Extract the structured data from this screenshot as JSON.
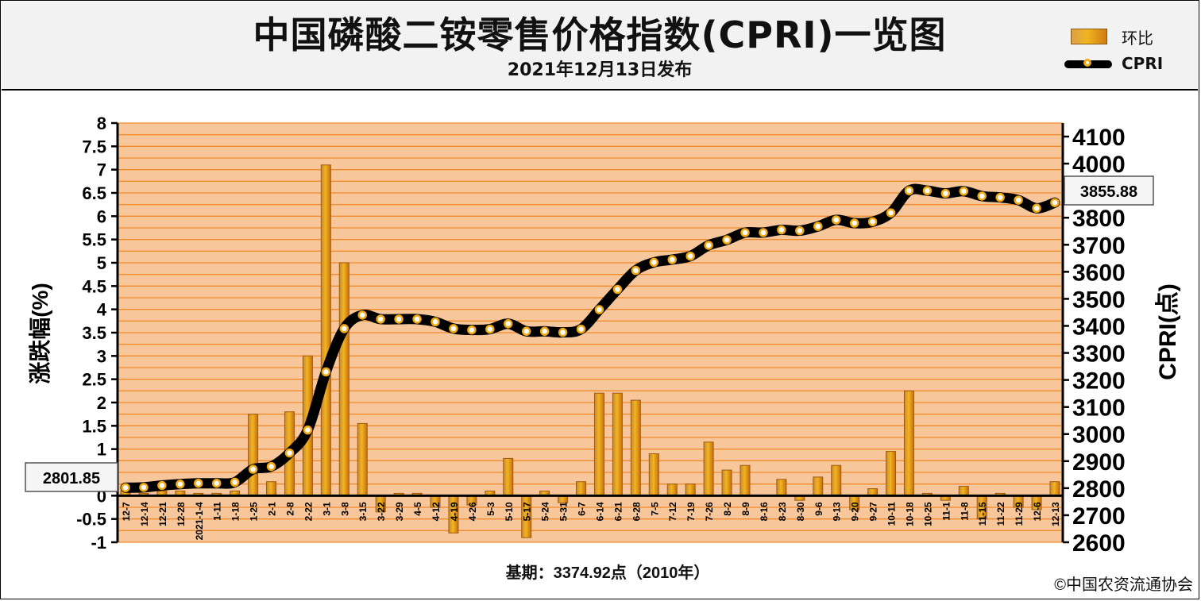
{
  "header": {
    "title": "中国磷酸二铵零售价格指数(CPRI)一览图",
    "subtitle": "2021年12月13日发布"
  },
  "legend": {
    "bar_label": "环比",
    "line_label": "CPRI"
  },
  "footer": {
    "base_period": "基期：3374.92点（2010年）",
    "copyright": "©中国农资流通协会"
  },
  "callouts": {
    "start_value": "2801.85",
    "end_value": "3855.88"
  },
  "colors": {
    "band_fill": "#f7c79b",
    "band_line": "#f08a2a",
    "bar_fill": "#f2b41f",
    "bar_edge": "#a05a10",
    "line": "#000000",
    "dot_fill": "#ffffff",
    "dot_ring": "#f0a810"
  },
  "chart_data": {
    "type": "bar+line",
    "title": "中国磷酸二铵零售价格指数(CPRI)一览图",
    "ylabel_left": "涨跌幅(%)",
    "ylabel_right": "CPRI(点)",
    "ylim_left": [
      -1,
      8
    ],
    "ylim_right": [
      2600,
      4150
    ],
    "left_ticks": [
      "8",
      "7.5",
      "7",
      "6.5",
      "6",
      "5.5",
      "5",
      "4.5",
      "4",
      "3.5",
      "3",
      "2.5",
      "2",
      "1.5",
      "1",
      "0.5",
      "0",
      "-0.5",
      "-1"
    ],
    "right_ticks": [
      "4100",
      "4000",
      "3900",
      "3800",
      "3700",
      "3600",
      "3500",
      "3400",
      "3300",
      "3200",
      "3100",
      "3000",
      "2900",
      "2800",
      "2700",
      "2600"
    ],
    "categories": [
      "12-7",
      "12-14",
      "12-21",
      "12-28",
      "2021-1-4",
      "1-11",
      "1-18",
      "1-25",
      "2-1",
      "2-8",
      "2-22",
      "3-1",
      "3-8",
      "3-15",
      "3-22",
      "3-29",
      "4-5",
      "4-12",
      "4-19",
      "4-26",
      "5-3",
      "5-10",
      "5-17",
      "5-24",
      "5-31",
      "6-7",
      "6-14",
      "6-21",
      "6-28",
      "7-5",
      "7-12",
      "7-19",
      "7-26",
      "8-2",
      "8-9",
      "8-16",
      "8-23",
      "8-30",
      "9-6",
      "9-13",
      "9-20",
      "9-27",
      "10-11",
      "10-18",
      "10-25",
      "11-1",
      "11-8",
      "11-15",
      "11-22",
      "11-29",
      "12-6",
      "12-13"
    ],
    "series": [
      {
        "name": "环比",
        "type": "bar",
        "values": [
          0.1,
          0.05,
          0.1,
          0.1,
          0.05,
          0.05,
          0.1,
          1.75,
          0.3,
          1.8,
          3.0,
          7.1,
          5.0,
          1.55,
          -0.35,
          0.05,
          0.05,
          -0.25,
          -0.8,
          -0.2,
          0.1,
          0.8,
          -0.9,
          0.1,
          -0.15,
          0.3,
          2.2,
          2.2,
          2.05,
          0.9,
          0.25,
          0.25,
          1.15,
          0.55,
          0.65,
          0.0,
          0.35,
          -0.1,
          0.4,
          0.65,
          -0.3,
          0.15,
          0.95,
          2.25,
          0.05,
          -0.1,
          0.2,
          -0.5,
          0.05,
          -0.25,
          -0.3,
          0.3
        ]
      },
      {
        "name": "CPRI",
        "type": "line",
        "values": [
          2801.85,
          2803,
          2810,
          2815,
          2818,
          2818,
          2822,
          2870,
          2880,
          2930,
          3015,
          3230,
          3390,
          3440,
          3425,
          3425,
          3425,
          3415,
          3390,
          3385,
          3388,
          3408,
          3380,
          3380,
          3376,
          3388,
          3460,
          3535,
          3605,
          3635,
          3645,
          3658,
          3698,
          3718,
          3745,
          3745,
          3755,
          3752,
          3768,
          3792,
          3780,
          3785,
          3818,
          3900,
          3900,
          3890,
          3898,
          3880,
          3875,
          3865,
          3835,
          3855.88
        ]
      }
    ],
    "grid": true
  }
}
